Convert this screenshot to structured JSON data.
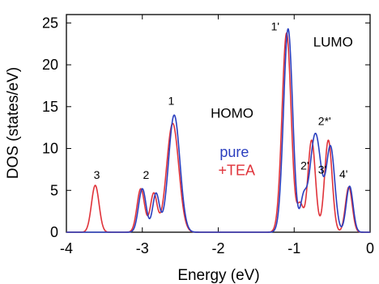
{
  "chart_data": {
    "type": "line",
    "title": "",
    "xlabel": "Energy (eV)",
    "ylabel": "DOS (states/eV)",
    "xlim": [
      -4,
      0
    ],
    "ylim": [
      0,
      26
    ],
    "xticks": [
      -4,
      -3,
      -2,
      -1,
      0
    ],
    "yticks": [
      0,
      5,
      10,
      15,
      20,
      25
    ],
    "xtick_labels": [
      "-4",
      "-3",
      "-2",
      "-1",
      "0"
    ],
    "ytick_labels": [
      "0",
      "5",
      "10",
      "15",
      "20",
      "25"
    ],
    "grid": false,
    "legend_placement": "center-right",
    "series": [
      {
        "name": "pure",
        "color": "#2b3fbf",
        "peaks": [
          {
            "center": -3.0,
            "height": 5.2,
            "width": 0.05
          },
          {
            "center": -2.82,
            "height": 4.6,
            "width": 0.045
          },
          {
            "center": -2.58,
            "height": 14.0,
            "width": 0.075
          },
          {
            "center": -1.08,
            "height": 24.3,
            "width": 0.06
          },
          {
            "center": -0.88,
            "height": 3.4,
            "width": 0.04
          },
          {
            "center": -0.72,
            "height": 11.8,
            "width": 0.075
          },
          {
            "center": -0.52,
            "height": 10.0,
            "width": 0.055
          },
          {
            "center": -0.27,
            "height": 5.5,
            "width": 0.045
          }
        ]
      },
      {
        "name": "+TEA",
        "color": "#e0333a",
        "peaks": [
          {
            "center": -3.62,
            "height": 5.6,
            "width": 0.05
          },
          {
            "center": -3.02,
            "height": 5.2,
            "width": 0.05
          },
          {
            "center": -2.85,
            "height": 4.6,
            "width": 0.045
          },
          {
            "center": -2.6,
            "height": 13.0,
            "width": 0.08
          },
          {
            "center": -1.1,
            "height": 23.8,
            "width": 0.06
          },
          {
            "center": -0.92,
            "height": 3.2,
            "width": 0.04
          },
          {
            "center": -0.77,
            "height": 11.0,
            "width": 0.05
          },
          {
            "center": -0.55,
            "height": 11.0,
            "width": 0.05
          },
          {
            "center": -0.28,
            "height": 5.4,
            "width": 0.045
          }
        ]
      }
    ],
    "annotations": [
      {
        "text": "1",
        "x": -2.62,
        "y": 15.2
      },
      {
        "text": "HOMO",
        "x": -2.1,
        "y": 13.7
      },
      {
        "text": "2",
        "x": -2.95,
        "y": 6.4
      },
      {
        "text": "3",
        "x": -3.6,
        "y": 6.4
      },
      {
        "text": "1'",
        "x": -1.25,
        "y": 24.1
      },
      {
        "text": "LUMO",
        "x": -0.75,
        "y": 22.2
      },
      {
        "text": "2*'",
        "x": -0.6,
        "y": 12.8
      },
      {
        "text": "2'",
        "x": -0.86,
        "y": 7.5
      },
      {
        "text": "3'",
        "x": -0.63,
        "y": 7.0
      },
      {
        "text": "4'",
        "x": -0.35,
        "y": 6.5
      }
    ],
    "legend": [
      {
        "text": "pure",
        "color": "#2b3fbf",
        "x": -1.98,
        "y": 9.0
      },
      {
        "text": "+TEA",
        "color": "#e0333a",
        "x": -2.0,
        "y": 6.8
      }
    ]
  }
}
